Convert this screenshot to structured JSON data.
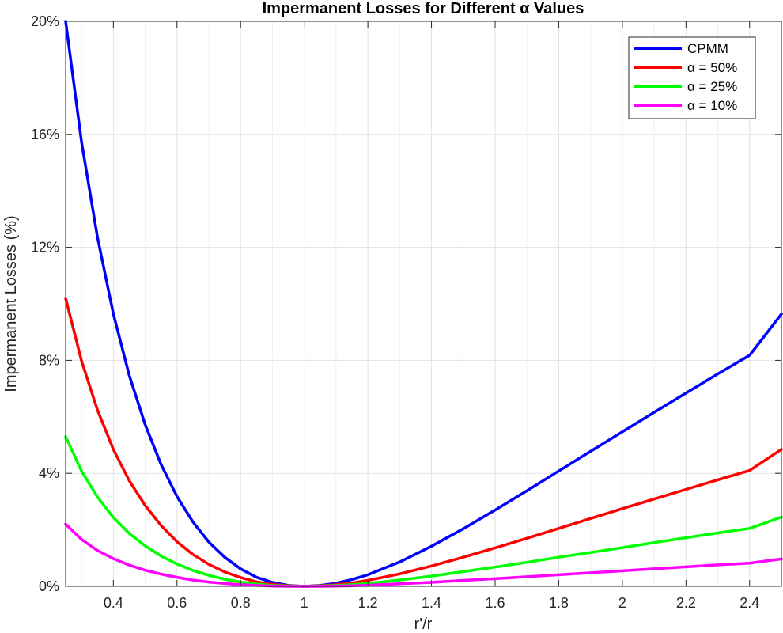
{
  "chart_data": {
    "type": "line",
    "title": "Impermanent Losses for Different α Values",
    "xlabel": "r'/r",
    "ylabel": "Impermanent Losses (%)",
    "xlim": [
      0.25,
      2.5
    ],
    "ylim": [
      0,
      20
    ],
    "xticks": [
      0.4,
      0.6,
      0.8,
      1,
      1.2,
      1.4,
      1.6,
      1.8,
      2,
      2.2,
      2.4
    ],
    "xtick_labels": [
      "0.4",
      "0.6",
      "0.8",
      "1",
      "1.2",
      "1.4",
      "1.6",
      "1.8",
      "2",
      "2.2",
      "2.4"
    ],
    "yticks": [
      0,
      4,
      8,
      12,
      16,
      20
    ],
    "ytick_labels": [
      "0%",
      "4%",
      "8%",
      "12%",
      "16%",
      "20%"
    ],
    "grid": true,
    "legend_position": "top-right",
    "x": [
      0.25,
      0.3,
      0.35,
      0.4,
      0.45,
      0.5,
      0.55,
      0.6,
      0.65,
      0.7,
      0.75,
      0.8,
      0.85,
      0.9,
      0.95,
      1.0,
      1.05,
      1.1,
      1.15,
      1.2,
      1.3,
      1.4,
      1.5,
      1.6,
      1.7,
      1.8,
      1.9,
      2.0,
      2.1,
      2.2,
      2.3,
      2.4,
      2.5
    ],
    "series": [
      {
        "name": "CPMM",
        "color": "#0000ff",
        "values": [
          20.0,
          15.73,
          12.36,
          9.65,
          7.47,
          5.72,
          4.31,
          3.18,
          2.28,
          1.57,
          1.03,
          0.62,
          0.32,
          0.14,
          0.03,
          0.0,
          0.03,
          0.11,
          0.24,
          0.41,
          0.86,
          1.42,
          2.04,
          2.7,
          3.38,
          4.08,
          4.78,
          5.47,
          6.16,
          6.84,
          7.52,
          8.18,
          9.64
        ]
      },
      {
        "name": "α = 50%",
        "color": "#ff0000",
        "values": [
          10.2,
          7.98,
          6.24,
          4.85,
          3.74,
          2.86,
          2.15,
          1.58,
          1.13,
          0.78,
          0.51,
          0.31,
          0.16,
          0.07,
          0.02,
          0.0,
          0.02,
          0.06,
          0.12,
          0.21,
          0.44,
          0.72,
          1.03,
          1.36,
          1.7,
          2.05,
          2.4,
          2.75,
          3.09,
          3.43,
          3.77,
          4.1,
          4.85
        ]
      },
      {
        "name": "α = 25%",
        "color": "#00ff00",
        "values": [
          5.3,
          4.08,
          3.16,
          2.44,
          1.87,
          1.43,
          1.07,
          0.79,
          0.56,
          0.39,
          0.25,
          0.15,
          0.08,
          0.03,
          0.01,
          0.0,
          0.01,
          0.03,
          0.06,
          0.1,
          0.22,
          0.36,
          0.52,
          0.68,
          0.85,
          1.03,
          1.2,
          1.37,
          1.55,
          1.72,
          1.89,
          2.05,
          2.45
        ]
      },
      {
        "name": "α = 10%",
        "color": "#ff00ff",
        "values": [
          2.2,
          1.66,
          1.27,
          0.98,
          0.75,
          0.57,
          0.43,
          0.32,
          0.22,
          0.15,
          0.1,
          0.06,
          0.03,
          0.01,
          0.0,
          0.0,
          0.0,
          0.01,
          0.02,
          0.04,
          0.09,
          0.14,
          0.21,
          0.27,
          0.34,
          0.41,
          0.48,
          0.55,
          0.62,
          0.69,
          0.76,
          0.82,
          0.97
        ]
      }
    ]
  }
}
